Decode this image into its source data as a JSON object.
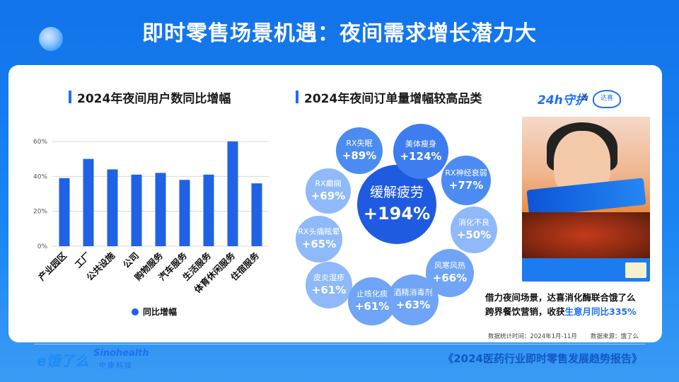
{
  "header": {
    "title": "即时零售场景机遇：夜间需求增长潜力大"
  },
  "left_section": {
    "title": "2024年夜间用户数同比增幅"
  },
  "middle_section": {
    "title": "2024年夜间订单量增幅较高品类"
  },
  "chart_data": [
    {
      "type": "bar",
      "categories": [
        "产业园区",
        "工厂",
        "公共设施",
        "公司",
        "购物服务",
        "汽车服务",
        "生活服务",
        "体育休闲服务",
        "住宿服务"
      ],
      "series": [
        {
          "name": "同比增幅",
          "values": [
            39,
            50,
            44,
            41,
            42,
            38,
            41,
            60,
            36
          ]
        }
      ],
      "y_ticks": [
        "60%",
        "40%",
        "20%",
        "0%"
      ],
      "ylim": [
        0,
        60
      ],
      "legend": "bottom",
      "grid": true,
      "colors": {
        "bar": "#1f62e6",
        "grid": "#d6d9de"
      }
    }
  ],
  "bubbles": [
    {
      "name": "缓解疲劳",
      "value": "+194%"
    },
    {
      "name": "美体瘦身",
      "value": "+124%"
    },
    {
      "name": "RX失眠",
      "value": "+89%"
    },
    {
      "name": "RX神经衰弱",
      "value": "+77%"
    },
    {
      "name": "RX癫痫",
      "value": "+69%"
    },
    {
      "name": "消化不良",
      "value": "+50%"
    },
    {
      "name": "RX头痛眩晕",
      "value": "+65%"
    },
    {
      "name": "风寒风热",
      "value": "+66%"
    },
    {
      "name": "皮炎湿疹",
      "value": "+61%"
    },
    {
      "name": "止咳化痰",
      "value": "+61%"
    },
    {
      "name": "酒精消毒剂",
      "value": "+63%"
    }
  ],
  "promo": {
    "brand_24": "24h守护",
    "x": "X",
    "brand_daxi": "达喜",
    "desc_line1": "借力夜间场景，达喜消化酶联合饿了么",
    "desc_line2_prefix": "跨界餐饮营销，收获",
    "desc_highlight": "生意月同比335%"
  },
  "notes": {
    "time": "数据统计时间：2024年1月-11月",
    "source": "数据来源：饿了么"
  },
  "footer": {
    "logo_ele": "e饿了么",
    "logo_sino": "Sinohealth",
    "logo_sino_cn": "中康科技",
    "report": "《2024医药行业即时零售发展趋势报告》"
  },
  "colors": {
    "accent": "#1f6ff0",
    "bg": "#1273ea"
  }
}
